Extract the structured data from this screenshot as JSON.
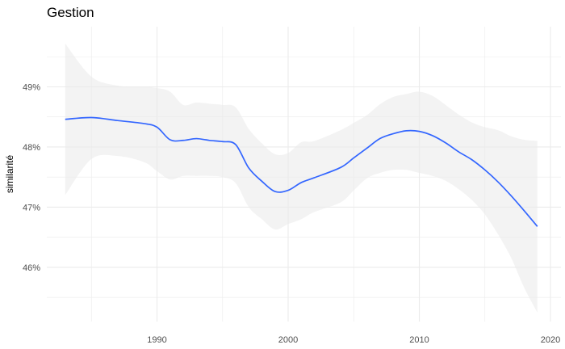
{
  "chart_data": {
    "type": "line",
    "title": "Gestion",
    "xlabel": "",
    "ylabel": "similarité",
    "xlim": [
      1981.6,
      2020.8
    ],
    "ylim": [
      45.1,
      50.0
    ],
    "x_ticks": [
      1990,
      2000,
      2010,
      2020
    ],
    "x_tick_labels": [
      "1990",
      "2000",
      "2010",
      "2020"
    ],
    "y_ticks": [
      46,
      47,
      48,
      49
    ],
    "y_tick_labels": [
      "46%",
      "47%",
      "48%",
      "49%"
    ],
    "grid": true,
    "legend": "none",
    "colors": {
      "line": "#3366ff",
      "ribbon": "#ebebeb",
      "grid": "#ebebeb"
    },
    "series": [
      {
        "x": [
          1983,
          1985,
          1987,
          1989,
          1990,
          1991,
          1992,
          1993,
          1994,
          1995,
          1996,
          1997,
          1998,
          1999,
          2000,
          2001,
          2002,
          2004,
          2005,
          2006,
          2007,
          2008,
          2009,
          2010,
          2011,
          2012,
          2013,
          2014,
          2015,
          2016,
          2017,
          2018,
          2019
        ],
        "y": [
          48.46,
          48.49,
          48.44,
          48.39,
          48.33,
          48.12,
          48.11,
          48.14,
          48.11,
          48.09,
          48.04,
          47.65,
          47.43,
          47.26,
          47.28,
          47.41,
          47.49,
          47.66,
          47.82,
          47.98,
          48.14,
          48.22,
          48.27,
          48.26,
          48.19,
          48.07,
          47.92,
          47.79,
          47.62,
          47.42,
          47.19,
          46.94,
          46.68
        ],
        "lower": [
          47.2,
          47.8,
          47.85,
          47.75,
          47.6,
          47.46,
          47.52,
          47.52,
          47.52,
          47.5,
          47.4,
          47.0,
          46.8,
          46.63,
          46.72,
          46.8,
          46.92,
          47.08,
          47.28,
          47.48,
          47.57,
          47.62,
          47.62,
          47.57,
          47.52,
          47.44,
          47.3,
          47.12,
          46.88,
          46.55,
          46.16,
          45.66,
          45.25
        ],
        "upper": [
          49.72,
          49.17,
          49.02,
          49.0,
          48.98,
          48.92,
          48.7,
          48.74,
          48.72,
          48.7,
          48.66,
          48.3,
          48.06,
          47.88,
          47.9,
          48.08,
          48.1,
          48.28,
          48.4,
          48.53,
          48.71,
          48.83,
          48.88,
          48.92,
          48.85,
          48.7,
          48.54,
          48.41,
          48.33,
          48.28,
          48.18,
          48.12,
          48.1
        ]
      }
    ]
  }
}
